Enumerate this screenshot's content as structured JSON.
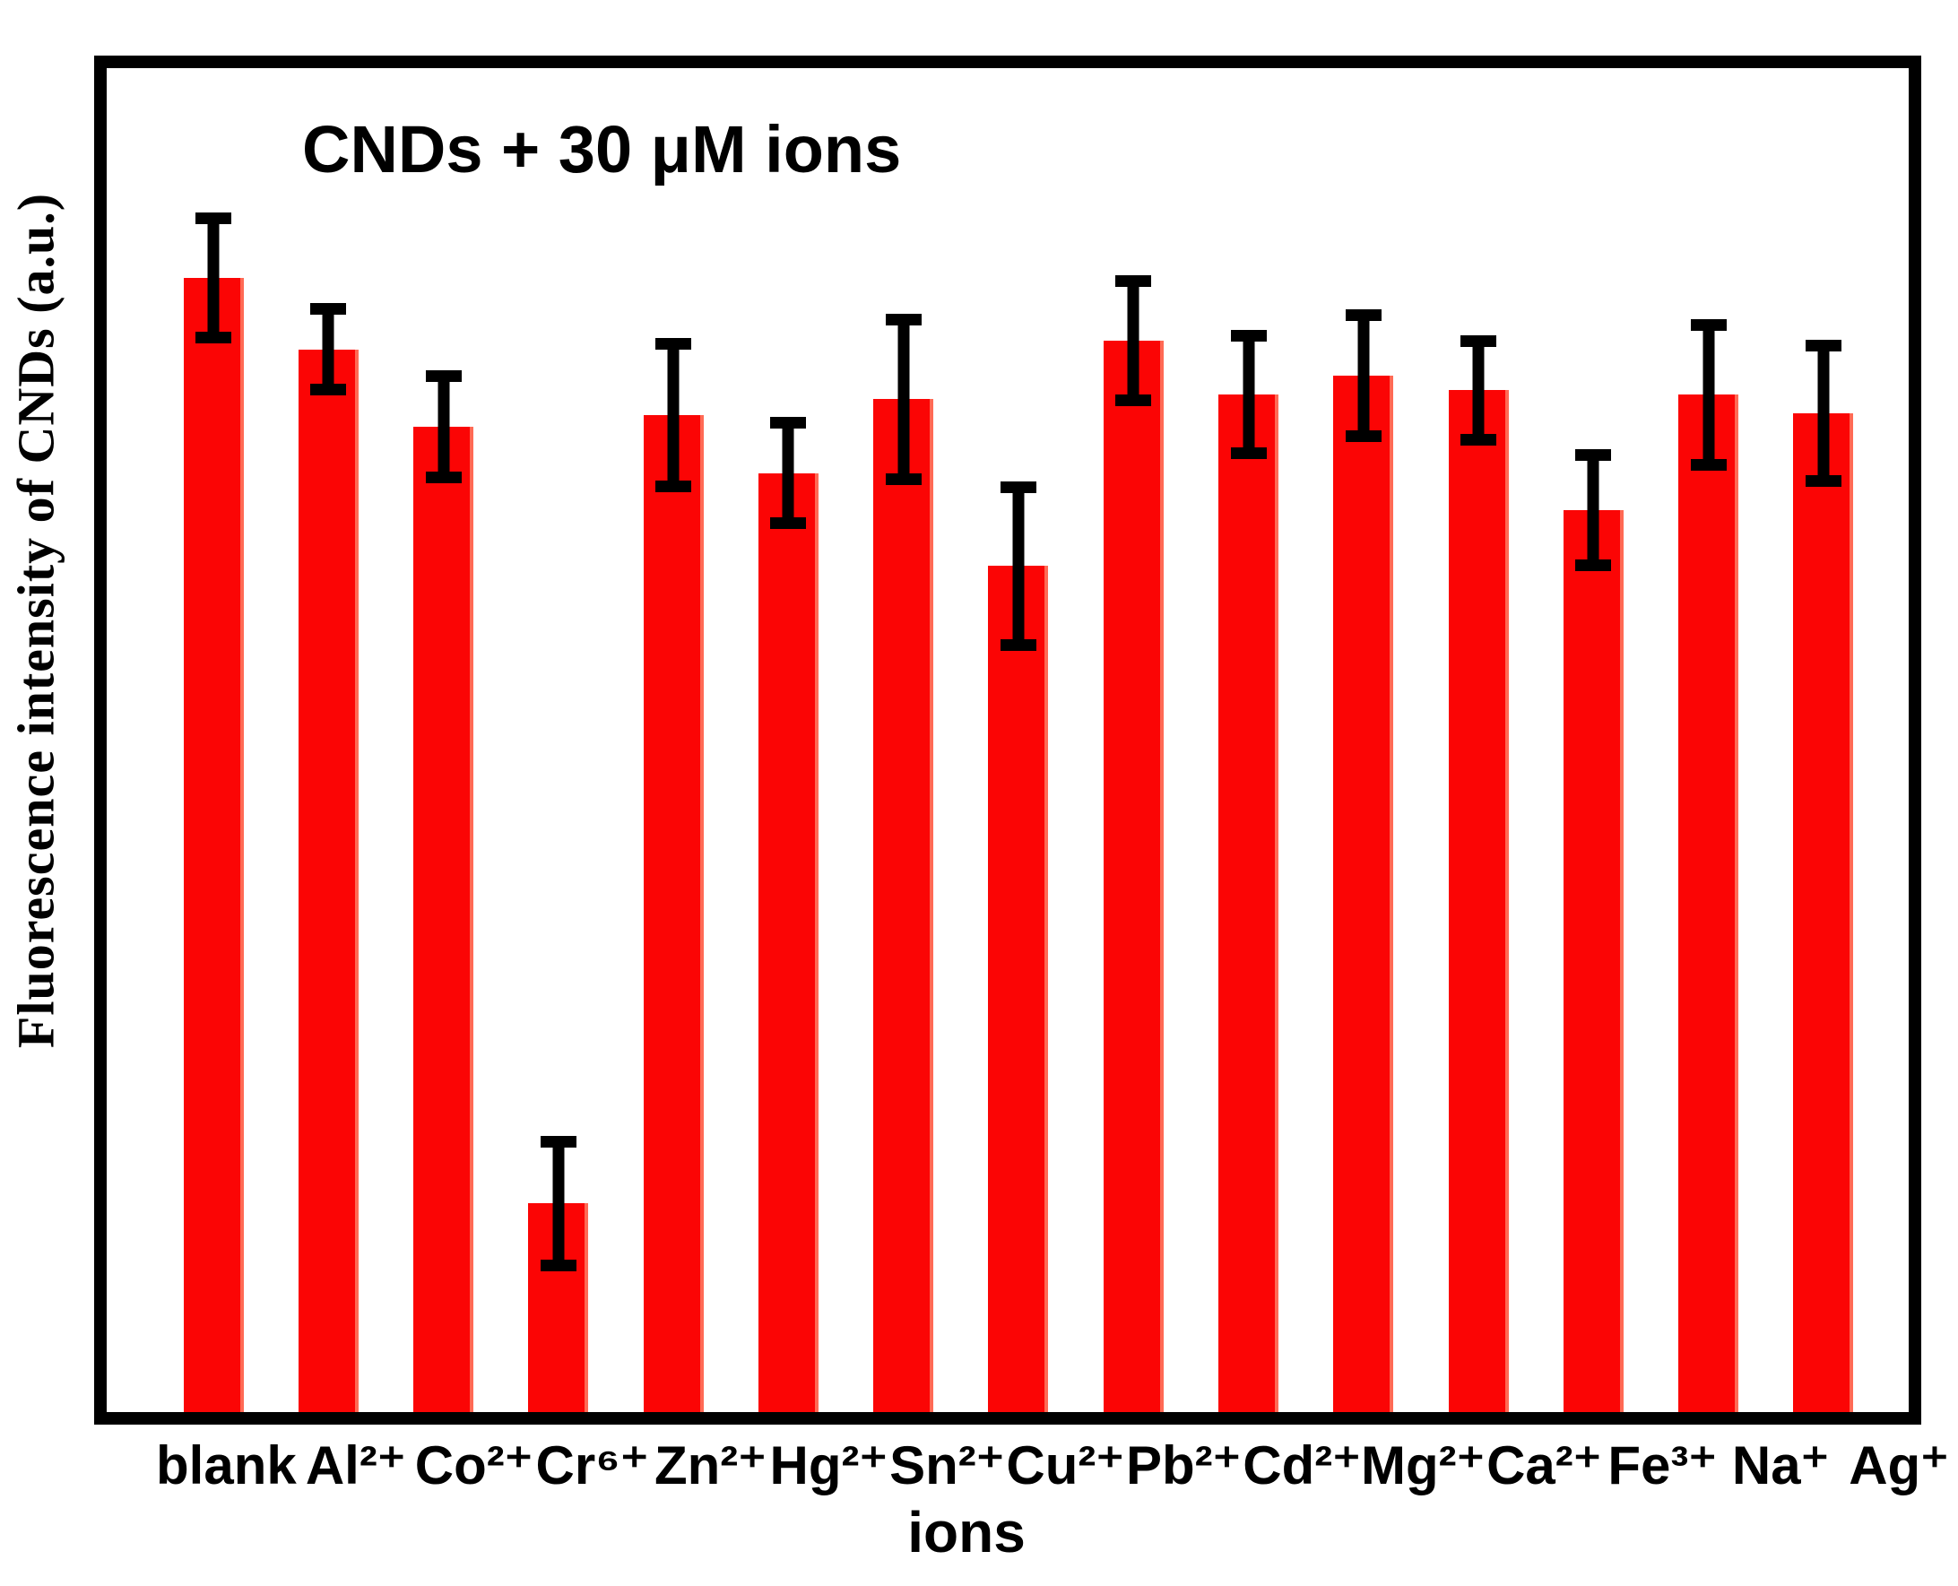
{
  "chart_data": {
    "type": "bar",
    "title": "CNDs + 30 μM ions",
    "xlabel": "ions",
    "ylabel": "Fluorescence intensity of CNDs (a.u.)",
    "categories": [
      "blank",
      "Al²⁺",
      "Co²⁺",
      "Cr⁶⁺",
      "Zn²⁺",
      "Hg²⁺",
      "Sn²⁺",
      "Cu²⁺",
      "Pb²⁺",
      "Cd²⁺",
      "Mg²⁺",
      "Ca²⁺",
      "Fe³⁺",
      "Na⁺",
      "Ag⁺"
    ],
    "values": [
      1.0,
      0.937,
      0.869,
      0.184,
      0.879,
      0.828,
      0.893,
      0.746,
      0.945,
      0.897,
      0.914,
      0.901,
      0.795,
      0.897,
      0.881
    ],
    "errors": [
      0.053,
      0.036,
      0.045,
      0.055,
      0.063,
      0.045,
      0.071,
      0.07,
      0.053,
      0.052,
      0.054,
      0.044,
      0.049,
      0.062,
      0.06
    ],
    "ylim": [
      0,
      1.185
    ],
    "normalization": "values in arbitrary units normalized to blank = 1.00",
    "bar_color": "#fb0505",
    "error_bar_color": "#000000",
    "grid": false,
    "legend": false
  }
}
